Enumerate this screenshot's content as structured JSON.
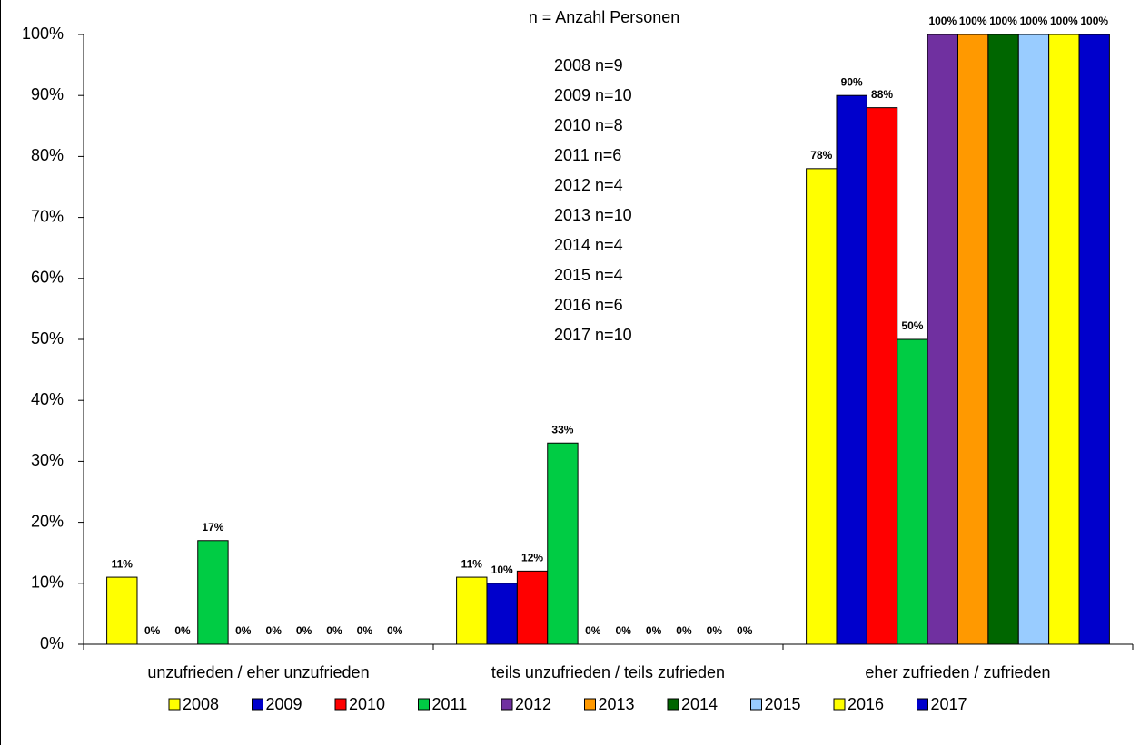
{
  "chart_data": {
    "type": "bar",
    "annotations": [
      "n = Anzahl Personen",
      "2008 n=9",
      "2009 n=10",
      "2010 n=8",
      "2011 n=6",
      "2012 n=4",
      "2013 n=10",
      "2014 n=4",
      "2015 n=4",
      "2016 n=6",
      "2017 n=10"
    ],
    "categories": [
      "unzufrieden / eher unzufrieden",
      "teils unzufrieden / teils zufrieden",
      "eher zufrieden / zufrieden"
    ],
    "series": [
      {
        "name": "2008",
        "color": "#ffff00",
        "values": [
          11,
          11,
          78
        ],
        "value_labels": [
          "11%",
          "11%",
          "78%"
        ]
      },
      {
        "name": "2009",
        "color": "#0000cc",
        "values": [
          0,
          10,
          90
        ],
        "value_labels": [
          "0%",
          "10%",
          "90%"
        ]
      },
      {
        "name": "2010",
        "color": "#ff0000",
        "values": [
          0,
          12,
          88
        ],
        "value_labels": [
          "0%",
          "12%",
          "88%"
        ]
      },
      {
        "name": "2011",
        "color": "#00cc44",
        "values": [
          17,
          33,
          50
        ],
        "value_labels": [
          "17%",
          "33%",
          "50%"
        ]
      },
      {
        "name": "2012",
        "color": "#7030a0",
        "values": [
          0,
          0,
          100
        ],
        "value_labels": [
          "0%",
          "0%",
          "100%"
        ]
      },
      {
        "name": "2013",
        "color": "#ff9900",
        "values": [
          0,
          0,
          100
        ],
        "value_labels": [
          "0%",
          "0%",
          "100%"
        ]
      },
      {
        "name": "2014",
        "color": "#006600",
        "values": [
          0,
          0,
          100
        ],
        "value_labels": [
          "0%",
          "0%",
          "100%"
        ]
      },
      {
        "name": "2015",
        "color": "#99ccff",
        "values": [
          0,
          0,
          100
        ],
        "value_labels": [
          "0%",
          "0%",
          "100%"
        ]
      },
      {
        "name": "2016",
        "color": "#ffff00",
        "values": [
          0,
          0,
          100
        ],
        "value_labels": [
          "0%",
          "0%",
          "100%"
        ]
      },
      {
        "name": "2017",
        "color": "#0000cc",
        "values": [
          0,
          0,
          100
        ],
        "value_labels": [
          "0%",
          "0%",
          "100%"
        ]
      }
    ],
    "ylim": [
      0,
      100
    ],
    "yticks": [
      {
        "value": 0,
        "label": "0%"
      },
      {
        "value": 10,
        "label": "10%"
      },
      {
        "value": 20,
        "label": "20%"
      },
      {
        "value": 30,
        "label": "30%"
      },
      {
        "value": 40,
        "label": "40%"
      },
      {
        "value": 50,
        "label": "50%"
      },
      {
        "value": 60,
        "label": "60%"
      },
      {
        "value": 70,
        "label": "70%"
      },
      {
        "value": 80,
        "label": "80%"
      },
      {
        "value": 90,
        "label": "90%"
      },
      {
        "value": 100,
        "label": "100%"
      }
    ],
    "grid": false,
    "legend": "bottom"
  }
}
